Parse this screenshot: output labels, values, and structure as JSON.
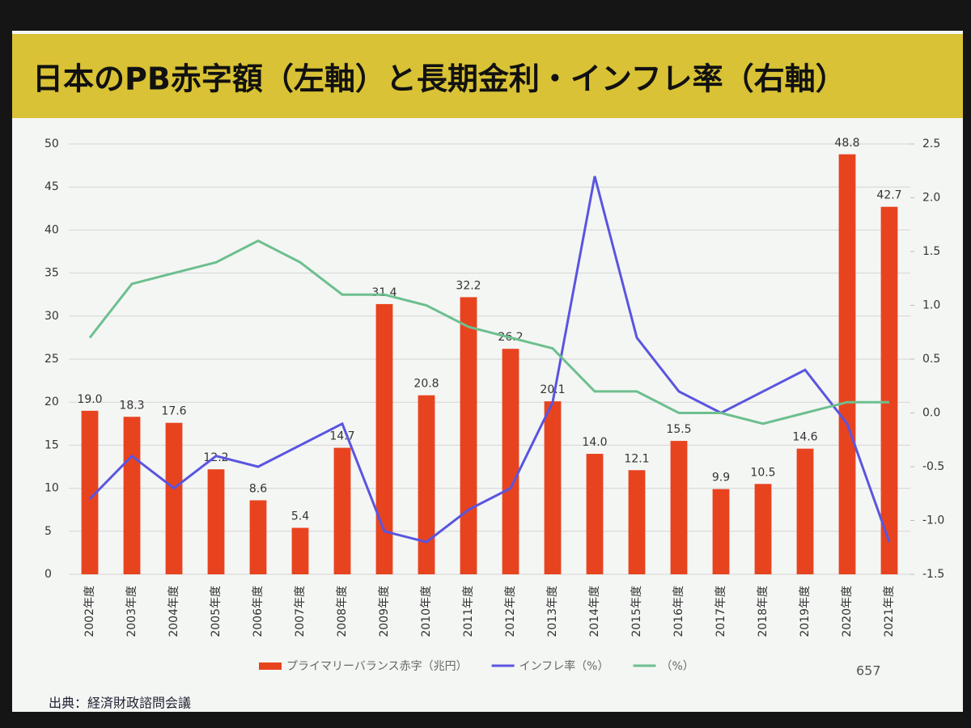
{
  "chart_data": {
    "type": "bar",
    "title": "日本のPB赤字額（左軸）と長期金利・インフレ率（右軸）",
    "source": "出典：経済財政諮問会議",
    "page_number": "657",
    "categories": [
      "2002年度",
      "2003年度",
      "2004年度",
      "2005年度",
      "2006年度",
      "2007年度",
      "2008年度",
      "2009年度",
      "2010年度",
      "2011年度",
      "2012年度",
      "2013年度",
      "2014年度",
      "2015年度",
      "2016年度",
      "2017年度",
      "2018年度",
      "2019年度",
      "2020年度",
      "2021年度"
    ],
    "series": [
      {
        "name": "プライマリーバランス赤字（兆円）",
        "type": "bar",
        "color": "#e8431f",
        "values": [
          19.0,
          18.3,
          17.6,
          12.2,
          8.6,
          5.4,
          14.7,
          31.4,
          20.8,
          32.2,
          26.2,
          20.1,
          14.0,
          12.1,
          15.5,
          9.9,
          10.5,
          14.6,
          48.8,
          42.7
        ],
        "value_labels": [
          "19.0",
          "18.3",
          "17.6",
          "12.2",
          "8.6",
          "5.4",
          "14.7",
          "31.4",
          "20.8",
          "32.2",
          "26.2",
          "20.1",
          "14.0",
          "12.1",
          "15.5",
          "9.9",
          "10.5",
          "14.6",
          "48.8",
          "42.7"
        ]
      },
      {
        "name": "インフレ率（%）",
        "type": "line",
        "axis": "y2",
        "color": "#5a55e0",
        "values": [
          -0.8,
          -0.4,
          -0.7,
          -0.4,
          -0.5,
          -0.3,
          -0.1,
          -1.1,
          -1.2,
          -0.9,
          -0.7,
          0.1,
          2.2,
          0.7,
          0.2,
          0.0,
          0.2,
          0.4,
          -0.1,
          -1.2
        ]
      },
      {
        "name": "（%）",
        "type": "line",
        "axis": "y2",
        "color": "#6dbf8e",
        "values": [
          0.7,
          1.2,
          1.3,
          1.4,
          1.6,
          1.4,
          1.1,
          1.1,
          1.0,
          0.8,
          0.7,
          0.6,
          0.2,
          0.2,
          0.0,
          0.0,
          -0.1,
          0.0,
          0.1,
          0.1
        ]
      }
    ],
    "ylim": [
      0,
      50
    ],
    "yticks": [
      0,
      5,
      10,
      15,
      20,
      25,
      30,
      35,
      40,
      45,
      50
    ],
    "y2lim": [
      -1.5,
      2.5
    ],
    "y2ticks": [
      -1.5,
      {
        "value": -1.0,
        "label": "-1.0"
      },
      -0.5,
      {
        "value": 0.0,
        "label": "0.0"
      },
      0.5,
      {
        "value": 1.0,
        "label": "1.0"
      },
      1.5,
      {
        "value": 2.0,
        "label": "2.0"
      },
      2.5
    ],
    "grid": true
  }
}
